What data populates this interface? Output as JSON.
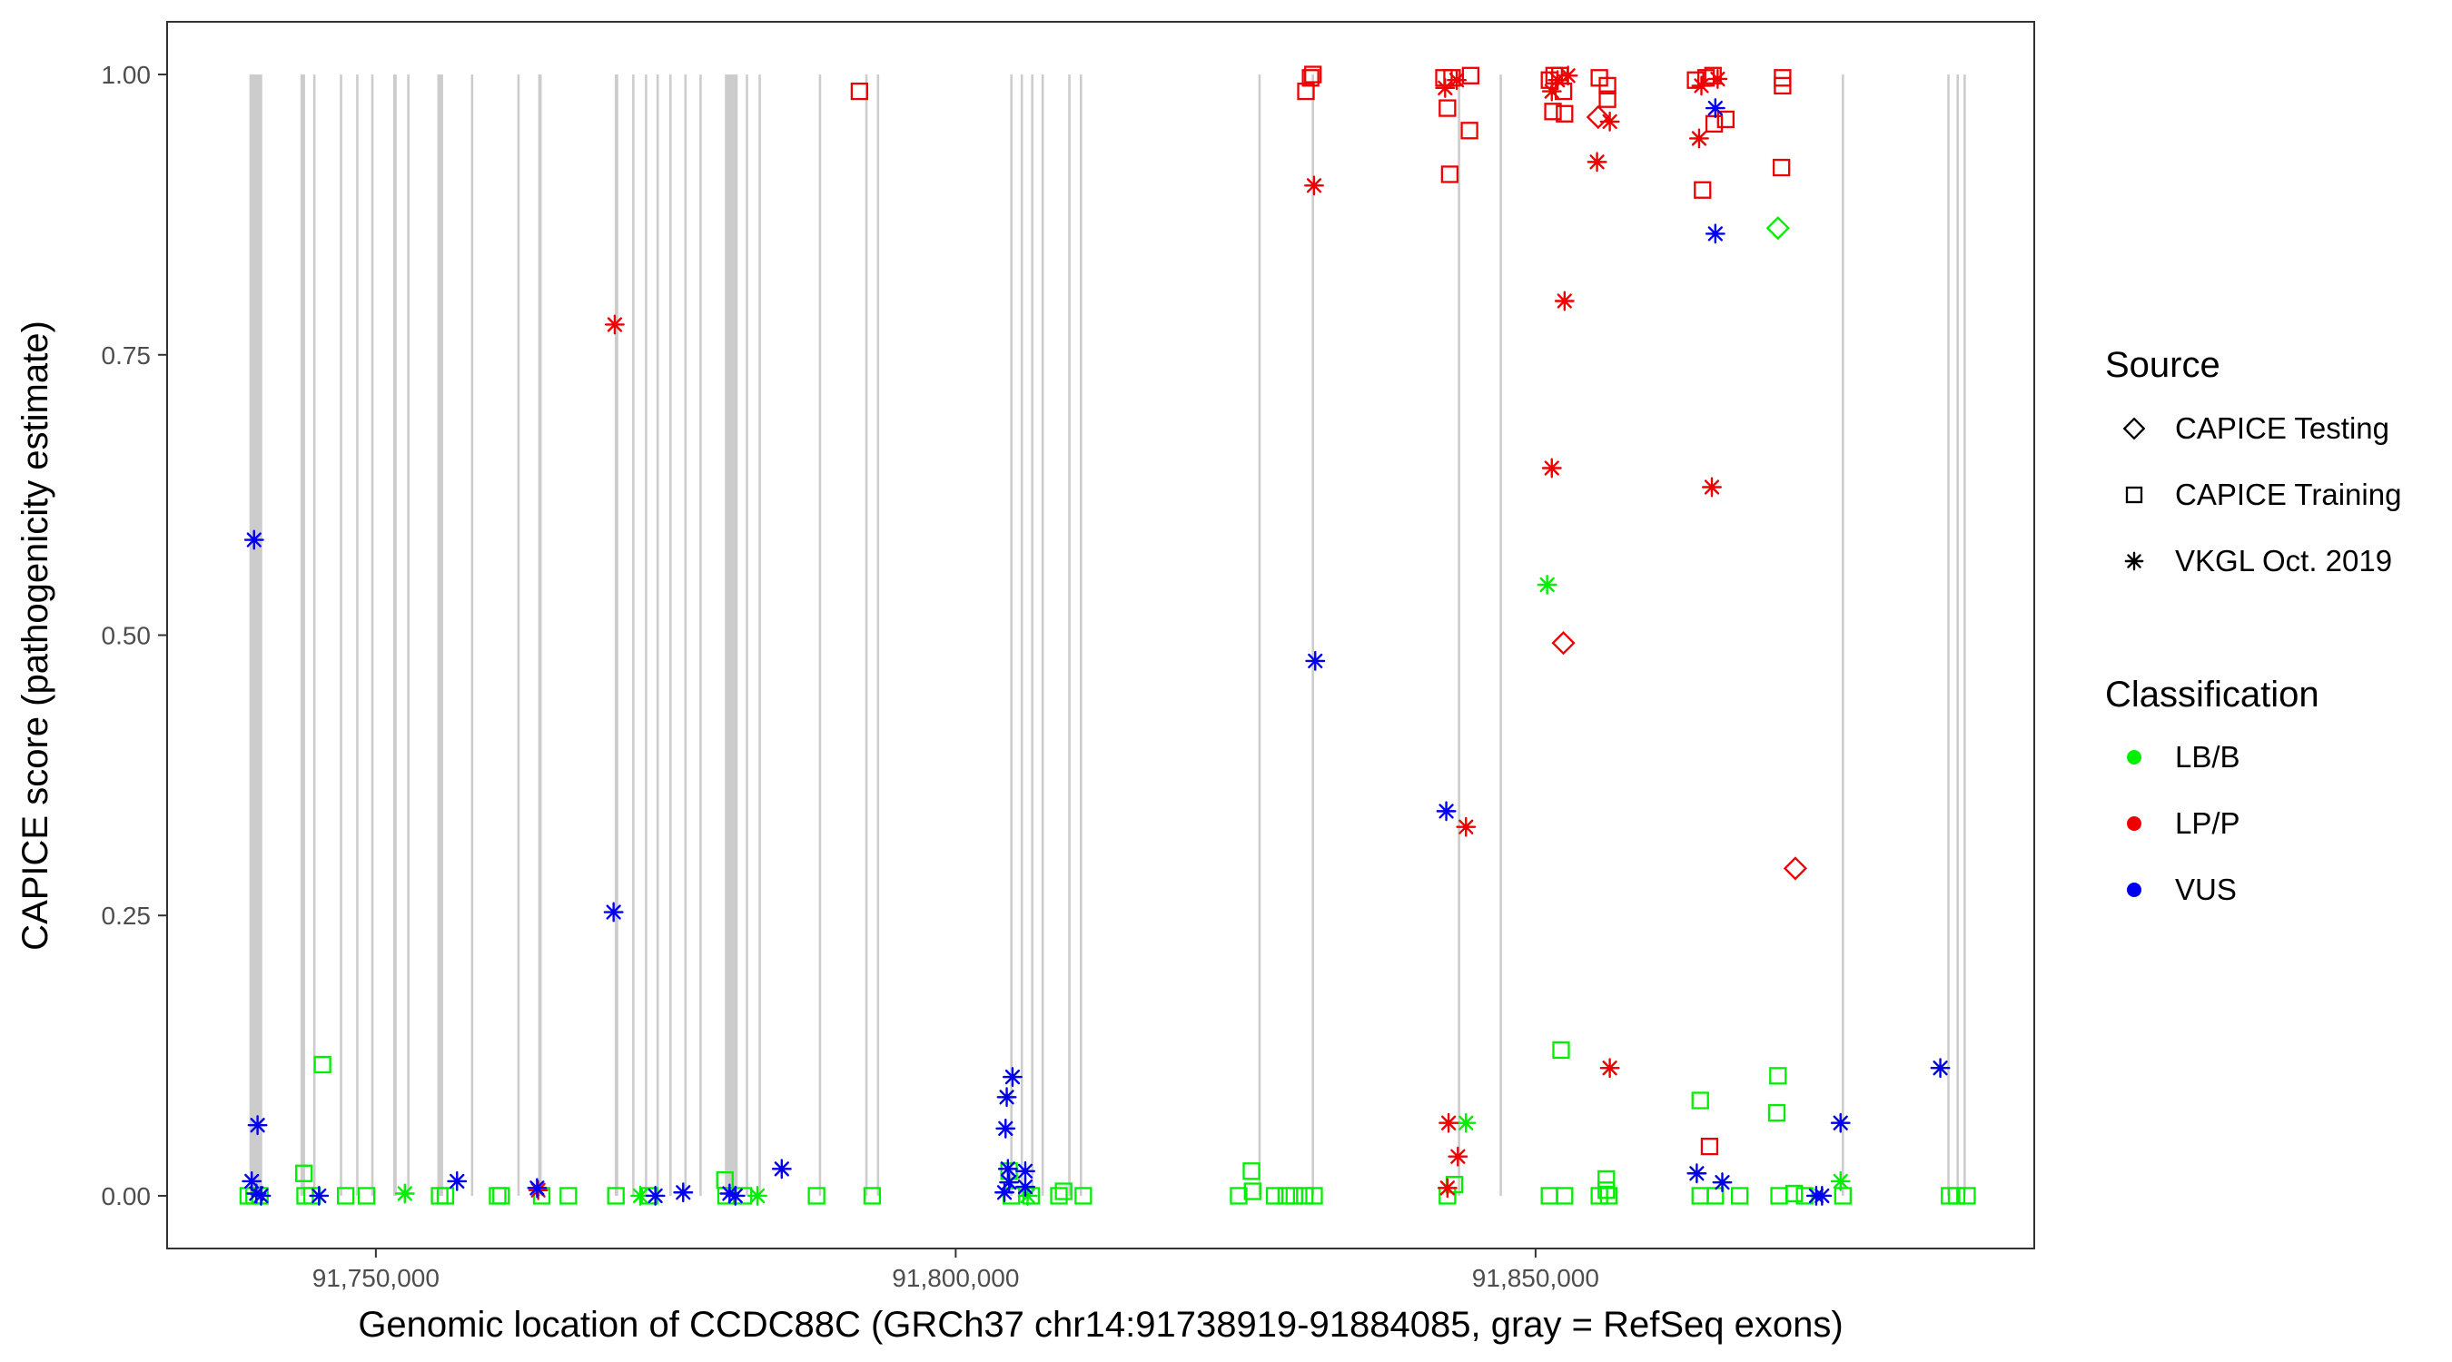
{
  "chart_data": {
    "type": "scatter",
    "title": "",
    "xlabel": "Genomic location of CCDC88C (GRCh37 chr14:91738919-91884085, gray = RefSeq exons)",
    "ylabel": "CAPICE score (pathogenicity estimate)",
    "xlim": [
      91732000,
      91893000
    ],
    "ylim": [
      -0.047,
      1.047
    ],
    "x_ticks": [
      91750000,
      91800000,
      91850000
    ],
    "x_tick_labels": [
      "91,750,000",
      "91,800,000",
      "91,850,000"
    ],
    "y_ticks": [
      0,
      0.25,
      0.5,
      0.75,
      1.0
    ],
    "y_tick_labels": [
      "0.00",
      "0.25",
      "0.50",
      "0.75",
      "1.00"
    ],
    "grid": false,
    "exon_color": "#cccccc",
    "exons": [
      [
        91739100,
        91740200
      ],
      [
        91743500,
        91743900
      ],
      [
        91744600,
        91744800
      ],
      [
        91746900,
        91747100
      ],
      [
        91748300,
        91748500
      ],
      [
        91749600,
        91749800
      ],
      [
        91751500,
        91751800
      ],
      [
        91752700,
        91752900
      ],
      [
        91755300,
        91755800
      ],
      [
        91758200,
        91758400
      ],
      [
        91762200,
        91762400
      ],
      [
        91764000,
        91764300
      ],
      [
        91770600,
        91770900
      ],
      [
        91772100,
        91772300
      ],
      [
        91773200,
        91773400
      ],
      [
        91774200,
        91774400
      ],
      [
        91775300,
        91775500
      ],
      [
        91776600,
        91776800
      ],
      [
        91777900,
        91778100
      ],
      [
        91780100,
        91781200
      ],
      [
        91781900,
        91782100
      ],
      [
        91783000,
        91783200
      ],
      [
        91788200,
        91788400
      ],
      [
        91792200,
        91792400
      ],
      [
        91793200,
        91793400
      ],
      [
        91804700,
        91804900
      ],
      [
        91805600,
        91805800
      ],
      [
        91806500,
        91806700
      ],
      [
        91807400,
        91807600
      ],
      [
        91809700,
        91809900
      ],
      [
        91810700,
        91810900
      ],
      [
        91826100,
        91826300
      ],
      [
        91830700,
        91830900
      ],
      [
        91843300,
        91843500
      ],
      [
        91846900,
        91847100
      ],
      [
        91876400,
        91876600
      ],
      [
        91885500,
        91885700
      ],
      [
        91886300,
        91886500
      ],
      [
        91886900,
        91887100
      ]
    ],
    "legend": {
      "placement": "right",
      "source_title": "Source",
      "source_items": [
        {
          "label": "CAPICE Testing",
          "shape": "diamond"
        },
        {
          "label": "CAPICE Training",
          "shape": "square"
        },
        {
          "label": "VKGL Oct. 2019",
          "shape": "asterisk"
        }
      ],
      "class_title": "Classification",
      "class_items": [
        {
          "label": "LB/B",
          "color": "#00ee00"
        },
        {
          "label": "LP/P",
          "color": "#ee0000"
        },
        {
          "label": "VUS",
          "color": "#0000ee"
        }
      ]
    },
    "series": [
      {
        "name": "LB/B",
        "color": "#00ee00",
        "points": [
          {
            "x": 91739000,
            "y": 0.0,
            "shape": "square"
          },
          {
            "x": 91739500,
            "y": 0.0,
            "shape": "square"
          },
          {
            "x": 91740000,
            "y": 0.0,
            "shape": "square"
          },
          {
            "x": 91743800,
            "y": 0.02,
            "shape": "square"
          },
          {
            "x": 91743900,
            "y": 0.0,
            "shape": "square"
          },
          {
            "x": 91744500,
            "y": 0.0,
            "shape": "square"
          },
          {
            "x": 91745400,
            "y": 0.117,
            "shape": "square"
          },
          {
            "x": 91747400,
            "y": 0.0,
            "shape": "square"
          },
          {
            "x": 91749200,
            "y": 0.0,
            "shape": "square"
          },
          {
            "x": 91752500,
            "y": 0.002,
            "shape": "asterisk"
          },
          {
            "x": 91755500,
            "y": 0.0,
            "shape": "square"
          },
          {
            "x": 91756000,
            "y": 0.0,
            "shape": "square"
          },
          {
            "x": 91760500,
            "y": 0.0,
            "shape": "square"
          },
          {
            "x": 91760800,
            "y": 0.0,
            "shape": "square"
          },
          {
            "x": 91764300,
            "y": 0.0,
            "shape": "square"
          },
          {
            "x": 91766600,
            "y": 0.0,
            "shape": "square"
          },
          {
            "x": 91770700,
            "y": 0.0,
            "shape": "square"
          },
          {
            "x": 91772800,
            "y": 0.0,
            "shape": "asterisk"
          },
          {
            "x": 91773600,
            "y": 0.0,
            "shape": "square"
          },
          {
            "x": 91780100,
            "y": 0.014,
            "shape": "square"
          },
          {
            "x": 91780200,
            "y": 0.0,
            "shape": "square"
          },
          {
            "x": 91781700,
            "y": 0.0,
            "shape": "square"
          },
          {
            "x": 91782900,
            "y": 0.0,
            "shape": "asterisk"
          },
          {
            "x": 91788000,
            "y": 0.0,
            "shape": "square"
          },
          {
            "x": 91792800,
            "y": 0.0,
            "shape": "square"
          },
          {
            "x": 91804600,
            "y": 0.022,
            "shape": "square"
          },
          {
            "x": 91804800,
            "y": 0.0,
            "shape": "square"
          },
          {
            "x": 91806200,
            "y": 0.0,
            "shape": "asterisk"
          },
          {
            "x": 91806500,
            "y": 0.0,
            "shape": "square"
          },
          {
            "x": 91808900,
            "y": 0.0,
            "shape": "square"
          },
          {
            "x": 91809300,
            "y": 0.004,
            "shape": "square"
          },
          {
            "x": 91811000,
            "y": 0.0,
            "shape": "square"
          },
          {
            "x": 91824400,
            "y": 0.0,
            "shape": "square"
          },
          {
            "x": 91825500,
            "y": 0.022,
            "shape": "square"
          },
          {
            "x": 91825600,
            "y": 0.004,
            "shape": "square"
          },
          {
            "x": 91827500,
            "y": 0.0,
            "shape": "square"
          },
          {
            "x": 91828500,
            "y": 0.0,
            "shape": "square"
          },
          {
            "x": 91829200,
            "y": 0.0,
            "shape": "square"
          },
          {
            "x": 91830100,
            "y": 0.0,
            "shape": "square"
          },
          {
            "x": 91830900,
            "y": 0.0,
            "shape": "square"
          },
          {
            "x": 91842400,
            "y": 0.0,
            "shape": "square"
          },
          {
            "x": 91843000,
            "y": 0.01,
            "shape": "square"
          },
          {
            "x": 91844000,
            "y": 0.065,
            "shape": "asterisk"
          },
          {
            "x": 91851000,
            "y": 0.545,
            "shape": "asterisk"
          },
          {
            "x": 91851200,
            "y": 0.0,
            "shape": "square"
          },
          {
            "x": 91852200,
            "y": 0.13,
            "shape": "square"
          },
          {
            "x": 91852500,
            "y": 0.0,
            "shape": "square"
          },
          {
            "x": 91855500,
            "y": 0.0,
            "shape": "square"
          },
          {
            "x": 91856100,
            "y": 0.015,
            "shape": "square"
          },
          {
            "x": 91856100,
            "y": 0.005,
            "shape": "square"
          },
          {
            "x": 91856300,
            "y": 0.0,
            "shape": "square"
          },
          {
            "x": 91864200,
            "y": 0.085,
            "shape": "square"
          },
          {
            "x": 91864200,
            "y": 0.0,
            "shape": "square"
          },
          {
            "x": 91865500,
            "y": 0.0,
            "shape": "square"
          },
          {
            "x": 91867600,
            "y": 0.0,
            "shape": "square"
          },
          {
            "x": 91870900,
            "y": 0.863,
            "shape": "diamond"
          },
          {
            "x": 91870900,
            "y": 0.107,
            "shape": "square"
          },
          {
            "x": 91870800,
            "y": 0.074,
            "shape": "square"
          },
          {
            "x": 91871000,
            "y": 0.0,
            "shape": "square"
          },
          {
            "x": 91872300,
            "y": 0.002,
            "shape": "square"
          },
          {
            "x": 91873200,
            "y": 0.0,
            "shape": "square"
          },
          {
            "x": 91876300,
            "y": 0.013,
            "shape": "asterisk"
          },
          {
            "x": 91876500,
            "y": 0.0,
            "shape": "square"
          },
          {
            "x": 91885700,
            "y": 0.0,
            "shape": "square"
          },
          {
            "x": 91886300,
            "y": 0.0,
            "shape": "square"
          },
          {
            "x": 91887200,
            "y": 0.0,
            "shape": "square"
          }
        ]
      },
      {
        "name": "LP/P",
        "color": "#ee0000",
        "points": [
          {
            "x": 91764000,
            "y": 0.005,
            "shape": "asterisk"
          },
          {
            "x": 91770600,
            "y": 0.777,
            "shape": "asterisk"
          },
          {
            "x": 91791700,
            "y": 0.985,
            "shape": "square"
          },
          {
            "x": 91830200,
            "y": 0.985,
            "shape": "square"
          },
          {
            "x": 91830600,
            "y": 0.997,
            "shape": "square"
          },
          {
            "x": 91830800,
            "y": 1.0,
            "shape": "square"
          },
          {
            "x": 91830900,
            "y": 0.901,
            "shape": "asterisk"
          },
          {
            "x": 91842100,
            "y": 0.997,
            "shape": "square"
          },
          {
            "x": 91842200,
            "y": 0.988,
            "shape": "asterisk"
          },
          {
            "x": 91842400,
            "y": 0.97,
            "shape": "square"
          },
          {
            "x": 91842600,
            "y": 0.911,
            "shape": "square"
          },
          {
            "x": 91842800,
            "y": 0.997,
            "shape": "square"
          },
          {
            "x": 91843200,
            "y": 0.995,
            "shape": "asterisk"
          },
          {
            "x": 91844300,
            "y": 0.95,
            "shape": "square"
          },
          {
            "x": 91844400,
            "y": 0.999,
            "shape": "square"
          },
          {
            "x": 91842500,
            "y": 0.065,
            "shape": "asterisk"
          },
          {
            "x": 91843300,
            "y": 0.035,
            "shape": "asterisk"
          },
          {
            "x": 91842400,
            "y": 0.007,
            "shape": "asterisk"
          },
          {
            "x": 91844000,
            "y": 0.329,
            "shape": "asterisk"
          },
          {
            "x": 91851200,
            "y": 0.995,
            "shape": "square"
          },
          {
            "x": 91851400,
            "y": 0.985,
            "shape": "asterisk"
          },
          {
            "x": 91851500,
            "y": 0.967,
            "shape": "square"
          },
          {
            "x": 91851600,
            "y": 0.999,
            "shape": "square"
          },
          {
            "x": 91851900,
            "y": 0.995,
            "shape": "asterisk"
          },
          {
            "x": 91852100,
            "y": 0.999,
            "shape": "square"
          },
          {
            "x": 91852400,
            "y": 0.985,
            "shape": "square"
          },
          {
            "x": 91852500,
            "y": 0.965,
            "shape": "square"
          },
          {
            "x": 91852800,
            "y": 0.999,
            "shape": "asterisk"
          },
          {
            "x": 91851400,
            "y": 0.649,
            "shape": "asterisk"
          },
          {
            "x": 91852500,
            "y": 0.798,
            "shape": "asterisk"
          },
          {
            "x": 91852400,
            "y": 0.493,
            "shape": "diamond"
          },
          {
            "x": 91855500,
            "y": 0.997,
            "shape": "square"
          },
          {
            "x": 91855400,
            "y": 0.962,
            "shape": "diamond"
          },
          {
            "x": 91855300,
            "y": 0.922,
            "shape": "asterisk"
          },
          {
            "x": 91856200,
            "y": 0.99,
            "shape": "square"
          },
          {
            "x": 91856200,
            "y": 0.978,
            "shape": "square"
          },
          {
            "x": 91856400,
            "y": 0.958,
            "shape": "asterisk"
          },
          {
            "x": 91856400,
            "y": 0.114,
            "shape": "asterisk"
          },
          {
            "x": 91863800,
            "y": 0.995,
            "shape": "square"
          },
          {
            "x": 91864300,
            "y": 0.99,
            "shape": "asterisk"
          },
          {
            "x": 91864700,
            "y": 0.997,
            "shape": "square"
          },
          {
            "x": 91865300,
            "y": 0.999,
            "shape": "square"
          },
          {
            "x": 91865700,
            "y": 0.996,
            "shape": "asterisk"
          },
          {
            "x": 91864100,
            "y": 0.943,
            "shape": "asterisk"
          },
          {
            "x": 91864400,
            "y": 0.897,
            "shape": "square"
          },
          {
            "x": 91865400,
            "y": 0.956,
            "shape": "square"
          },
          {
            "x": 91866400,
            "y": 0.96,
            "shape": "square"
          },
          {
            "x": 91865200,
            "y": 0.632,
            "shape": "asterisk"
          },
          {
            "x": 91865000,
            "y": 0.044,
            "shape": "square"
          },
          {
            "x": 91871300,
            "y": 0.997,
            "shape": "square"
          },
          {
            "x": 91871300,
            "y": 0.99,
            "shape": "square"
          },
          {
            "x": 91871200,
            "y": 0.917,
            "shape": "square"
          },
          {
            "x": 91872400,
            "y": 0.292,
            "shape": "diamond"
          }
        ]
      },
      {
        "name": "VUS",
        "color": "#0000ee",
        "points": [
          {
            "x": 91739300,
            "y": 0.013,
            "shape": "asterisk"
          },
          {
            "x": 91739500,
            "y": 0.585,
            "shape": "asterisk"
          },
          {
            "x": 91739800,
            "y": 0.063,
            "shape": "asterisk"
          },
          {
            "x": 91739700,
            "y": 0.002,
            "shape": "asterisk"
          },
          {
            "x": 91740100,
            "y": 0.0,
            "shape": "asterisk"
          },
          {
            "x": 91745100,
            "y": 0.0,
            "shape": "asterisk"
          },
          {
            "x": 91757000,
            "y": 0.013,
            "shape": "asterisk"
          },
          {
            "x": 91763900,
            "y": 0.007,
            "shape": "asterisk"
          },
          {
            "x": 91770500,
            "y": 0.253,
            "shape": "asterisk"
          },
          {
            "x": 91774100,
            "y": 0.0,
            "shape": "asterisk"
          },
          {
            "x": 91776500,
            "y": 0.003,
            "shape": "asterisk"
          },
          {
            "x": 91780500,
            "y": 0.002,
            "shape": "asterisk"
          },
          {
            "x": 91781000,
            "y": 0.0,
            "shape": "asterisk"
          },
          {
            "x": 91785000,
            "y": 0.024,
            "shape": "asterisk"
          },
          {
            "x": 91804400,
            "y": 0.088,
            "shape": "asterisk"
          },
          {
            "x": 91804900,
            "y": 0.106,
            "shape": "asterisk"
          },
          {
            "x": 91804300,
            "y": 0.06,
            "shape": "asterisk"
          },
          {
            "x": 91804500,
            "y": 0.024,
            "shape": "asterisk"
          },
          {
            "x": 91806000,
            "y": 0.022,
            "shape": "asterisk"
          },
          {
            "x": 91804600,
            "y": 0.012,
            "shape": "asterisk"
          },
          {
            "x": 91806000,
            "y": 0.008,
            "shape": "asterisk"
          },
          {
            "x": 91804200,
            "y": 0.003,
            "shape": "asterisk"
          },
          {
            "x": 91831000,
            "y": 0.477,
            "shape": "asterisk"
          },
          {
            "x": 91842300,
            "y": 0.343,
            "shape": "asterisk"
          },
          {
            "x": 91863900,
            "y": 0.02,
            "shape": "asterisk"
          },
          {
            "x": 91865500,
            "y": 0.97,
            "shape": "asterisk"
          },
          {
            "x": 91865500,
            "y": 0.858,
            "shape": "asterisk"
          },
          {
            "x": 91866100,
            "y": 0.012,
            "shape": "asterisk"
          },
          {
            "x": 91874200,
            "y": 0.0,
            "shape": "asterisk"
          },
          {
            "x": 91874700,
            "y": 0.0,
            "shape": "asterisk"
          },
          {
            "x": 91876300,
            "y": 0.065,
            "shape": "asterisk"
          },
          {
            "x": 91884900,
            "y": 0.114,
            "shape": "asterisk"
          }
        ]
      }
    ]
  }
}
